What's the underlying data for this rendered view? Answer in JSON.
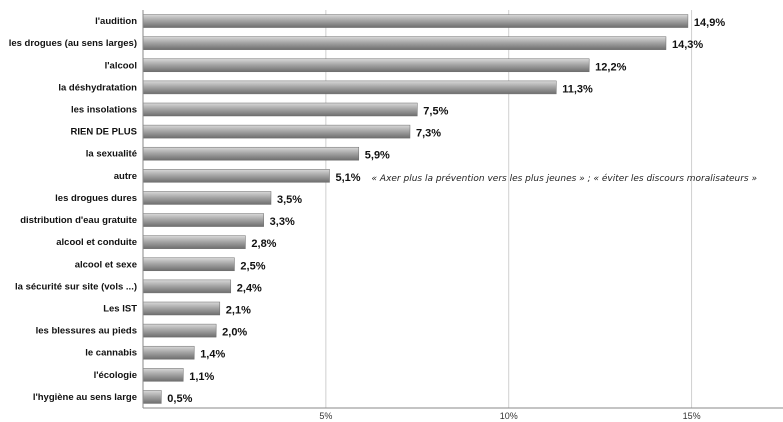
{
  "chart_data": {
    "type": "bar",
    "orientation": "horizontal",
    "categories": [
      "l'audition",
      "les drogues (au sens larges)",
      "l'alcool",
      "la déshydratation",
      "les insolations",
      "RIEN DE PLUS",
      "la sexualité",
      "autre",
      "les drogues dures",
      "distribution d'eau gratuite",
      "alcool et conduite",
      "alcool et sexe",
      "la sécurité sur site (vols ...)",
      "Les IST",
      "les blessures au pieds",
      "le cannabis",
      "l'écologie",
      "l'hygiène au sens large"
    ],
    "values": [
      14.9,
      14.3,
      12.2,
      11.3,
      7.5,
      7.3,
      5.9,
      5.1,
      3.5,
      3.3,
      2.8,
      2.5,
      2.4,
      2.1,
      2.0,
      1.4,
      1.1,
      0.5
    ],
    "value_labels": [
      "14,9%",
      "14,3%",
      "12,2%",
      "11,3%",
      "7,5%",
      "7,3%",
      "5,9%",
      "5,1%",
      "3,5%",
      "3,3%",
      "2,8%",
      "2,5%",
      "2,4%",
      "2,1%",
      "2,0%",
      "1,4%",
      "1,1%",
      "0,5%"
    ],
    "xlim": [
      0,
      17.5
    ],
    "x_ticks": [
      5,
      10,
      15
    ],
    "x_tick_labels": [
      "5%",
      "10%",
      "15%"
    ],
    "grid": true,
    "annotation": {
      "category": "autre",
      "text": "« Axer plus la prévention vers les plus jeunes » ; « éviter les discours moralisateurs »"
    },
    "bar_color": "#8c8c8c"
  }
}
